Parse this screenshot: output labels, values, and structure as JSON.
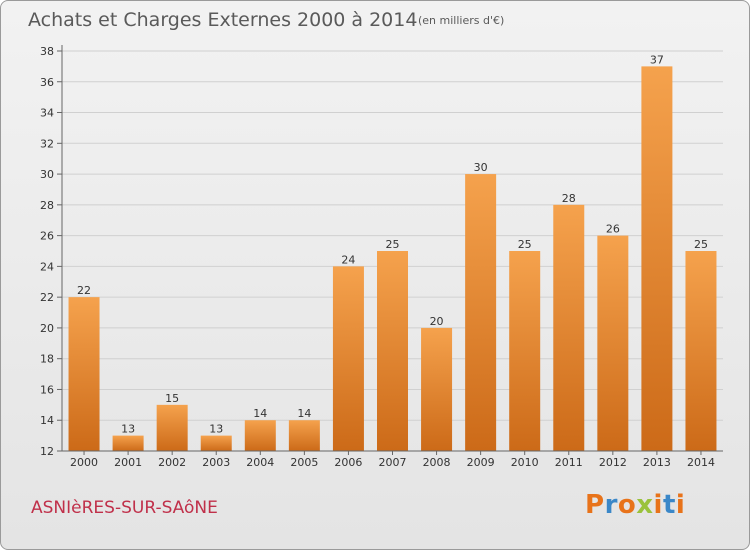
{
  "header": {
    "title": "Achats et Charges Externes 2000 à 2014",
    "subtitle": "(en milliers d'€)"
  },
  "footer": {
    "town": "ASNIèRES-SUR-SAôNE",
    "logo_text": "Proxiti",
    "logo_colors": [
      "#e8731a",
      "#3a87c8",
      "#e8731a",
      "#9ac23c",
      "#e8731a",
      "#3a87c8",
      "#e8731a"
    ]
  },
  "colors": {
    "bar_light": "#f5a24d",
    "bar_dark": "#cc6a18",
    "grid": "#d0d0d0",
    "axis": "#666666"
  },
  "chart_data": {
    "type": "bar",
    "title": "Achats et Charges Externes 2000 à 2014",
    "subtitle": "(en milliers d'€)",
    "xlabel": "",
    "ylabel": "",
    "categories": [
      "2000",
      "2001",
      "2002",
      "2003",
      "2004",
      "2005",
      "2006",
      "2007",
      "2008",
      "2009",
      "2010",
      "2011",
      "2012",
      "2013",
      "2014"
    ],
    "values": [
      22,
      13,
      15,
      13,
      14,
      14,
      24,
      25,
      20,
      30,
      25,
      28,
      26,
      37,
      25
    ],
    "ylim": [
      12,
      38
    ],
    "yticks": [
      12,
      14,
      16,
      18,
      20,
      22,
      24,
      26,
      28,
      30,
      32,
      34,
      36,
      38
    ],
    "grid": true,
    "data_labels": true
  }
}
